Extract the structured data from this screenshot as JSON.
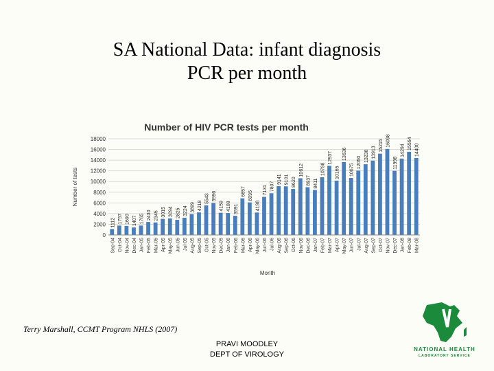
{
  "slide": {
    "title_line1": "SA National Data: infant diagnosis",
    "title_line2": "PCR per month",
    "citation": "Terry Marshall, CCMT Program NHLS (2007)",
    "author_line1": "PRAVI MOODLEY",
    "author_line2": "DEPT OF VIROLOGY"
  },
  "logo": {
    "line1": "NATIONAL HEALTH",
    "line2": "LABORATORY SERVICE"
  },
  "colors": {
    "bar": "#4a7ebb",
    "grid": "#d9d9d9",
    "title_text": "#333333",
    "logo_green": "#1b8a3a"
  },
  "chart_data": {
    "type": "bar",
    "title": "Number of HIV PCR tests per month",
    "xlabel": "Month",
    "ylabel": "Number of tests",
    "ylim": [
      0,
      18000
    ],
    "yticks": [
      0,
      2000,
      4000,
      6000,
      8000,
      10000,
      12000,
      14000,
      16000,
      18000
    ],
    "grid": true,
    "categories": [
      "Sep-04",
      "Oct-04",
      "Nov-04",
      "Dec-04",
      "Jan-05",
      "Feb-05",
      "Mar-05",
      "Apr-05",
      "May-05",
      "Jun-05",
      "Jul-05",
      "Aug-05",
      "Sep-05",
      "Oct-05",
      "Nov-05",
      "Dec-05",
      "Jan-06",
      "Feb-06",
      "Mar-06",
      "Apr-06",
      "May-06",
      "Jun-06",
      "Jul-06",
      "Aug-06",
      "Sep-06",
      "Oct-06",
      "Nov-06",
      "Dec-06",
      "Jan-07",
      "Feb-07",
      "Mar-07",
      "Apr-07",
      "May-07",
      "Jun-07",
      "Jul-07",
      "Aug-07",
      "Sep-07",
      "Oct-07",
      "Nov-07",
      "Dec-07",
      "Jan-08",
      "Feb-08",
      "Mar-08"
    ],
    "values": [
      1112,
      1757,
      1690,
      1407,
      1765,
      2430,
      2345,
      3015,
      3094,
      2825,
      3224,
      3899,
      4218,
      5543,
      5996,
      4159,
      4108,
      3591,
      6857,
      6095,
      4198,
      7131,
      7807,
      9141,
      9101,
      8620,
      10612,
      8937,
      8411,
      10798,
      12937,
      10165,
      13636,
      10675,
      12050,
      13236,
      13913,
      15215,
      16098,
      11998,
      14294,
      15564,
      14400
    ],
    "labels": [
      "1112",
      "1757",
      "1690",
      "1407",
      "1765",
      "2430",
      "2345",
      "3015",
      "3094",
      "2825",
      "3224",
      "3899",
      "4218",
      "5543",
      "5996",
      "4159",
      "4108",
      "3591",
      "6857",
      "6095",
      "4198",
      "7131",
      "7807",
      "9141",
      "9101",
      "8620",
      "10612",
      "8937",
      "8411",
      "10798",
      "12937",
      "10165",
      "13636",
      "10675",
      "12050",
      "13236",
      "13913",
      "15215",
      "16098",
      "11998",
      "14294",
      "15564",
      "14400"
    ]
  }
}
